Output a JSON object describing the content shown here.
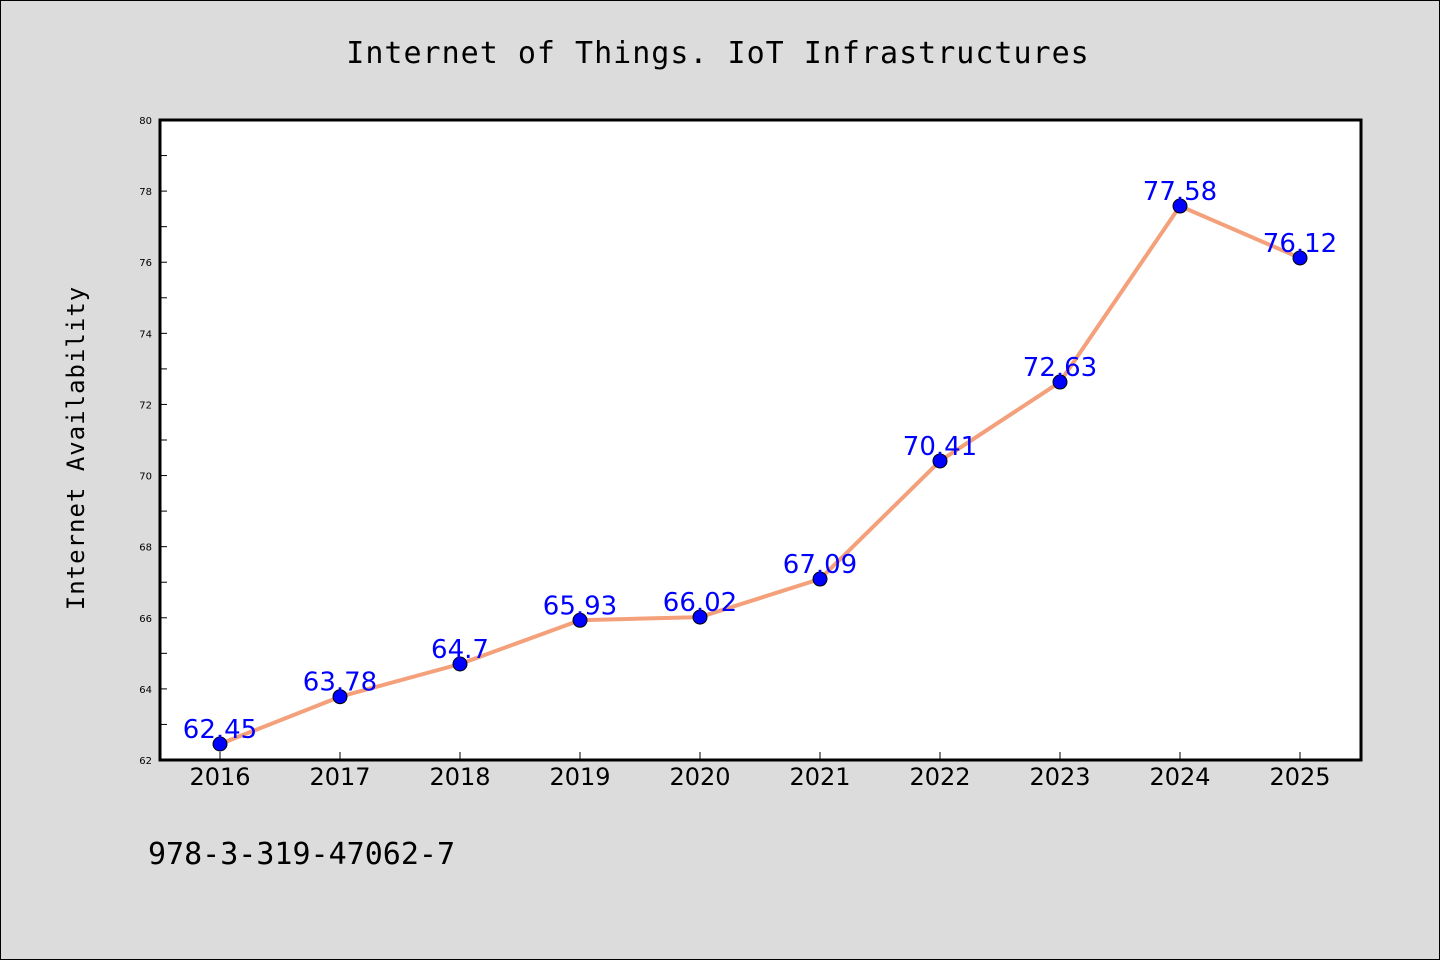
{
  "chart_data": {
    "type": "line",
    "title": "Internet of Things. IoT Infrastructures",
    "xlabel": "",
    "ylabel": "Internet Availability",
    "categories": [
      "2016",
      "2017",
      "2018",
      "2019",
      "2020",
      "2021",
      "2022",
      "2023",
      "2024",
      "2025"
    ],
    "series": [
      {
        "values": [
          62.45,
          63.78,
          64.7,
          65.93,
          66.02,
          67.09,
          70.41,
          72.63,
          77.58,
          76.12
        ],
        "data_labels": [
          "62.45",
          "63.78",
          "64.7",
          "65.93",
          "66.02",
          "67.09",
          "70.41",
          "72.63",
          "77.58",
          "76.12"
        ],
        "line_color": "#f4a07a",
        "marker_color": "#0000ff"
      }
    ],
    "ylim": [
      62,
      80
    ],
    "yticks": [
      "62",
      "64",
      "66",
      "68",
      "70",
      "72",
      "74",
      "76",
      "78",
      "80"
    ],
    "grid": false,
    "legend": "none"
  },
  "footnote": "978-3-319-47062-7",
  "colors": {
    "background": "#dcdcdc",
    "plot_area": "#ffffff",
    "line": "#f4a07a",
    "marker": "#0000ff",
    "data_label": "#0000ff"
  }
}
